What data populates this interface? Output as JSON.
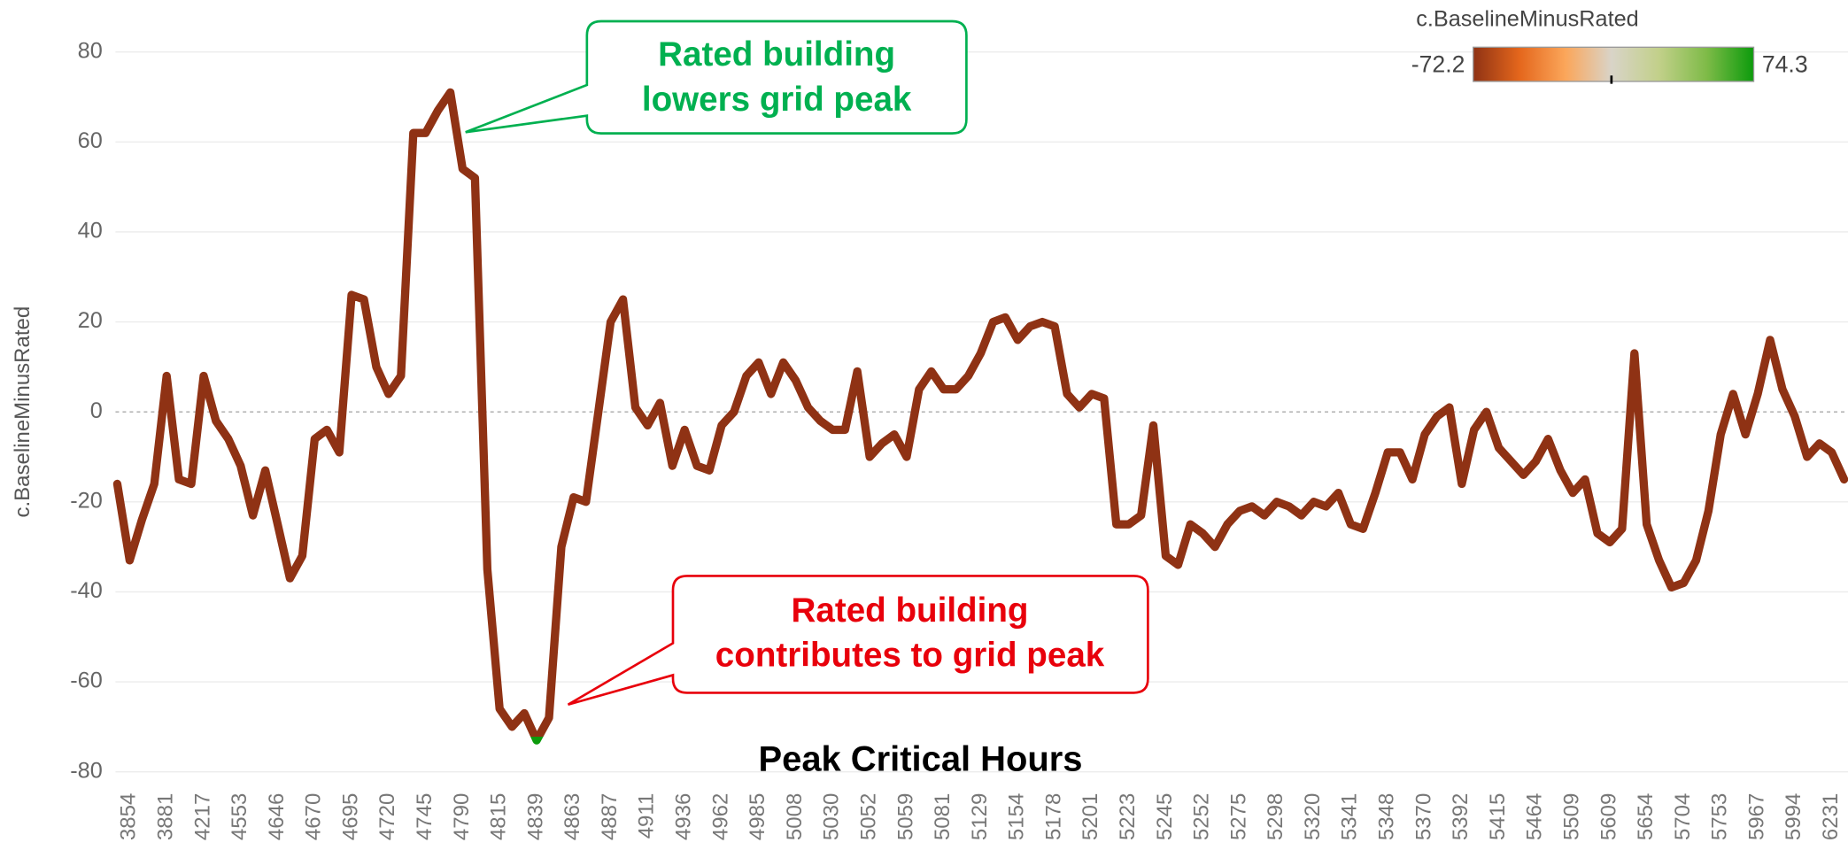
{
  "chart_data": {
    "type": "line",
    "y_label": "c.BaselineMinusRated",
    "x_label": "Peak Critical Hours",
    "categories": [
      null,
      "3854",
      null,
      null,
      "3881",
      null,
      null,
      "4217",
      null,
      null,
      "4553",
      null,
      null,
      "4646",
      null,
      null,
      "4670",
      null,
      null,
      "4695",
      null,
      null,
      "4720",
      null,
      null,
      "4745",
      null,
      null,
      "4790",
      null,
      null,
      "4815",
      null,
      null,
      "4839",
      null,
      null,
      "4863",
      null,
      null,
      "4887",
      null,
      null,
      "4911",
      null,
      null,
      "4936",
      null,
      null,
      "4962",
      null,
      null,
      "4985",
      null,
      null,
      "5008",
      null,
      null,
      "5030",
      null,
      null,
      "5052",
      null,
      null,
      "5059",
      null,
      null,
      "5081",
      null,
      null,
      "5129",
      null,
      null,
      "5154",
      null,
      null,
      "5178",
      null,
      null,
      "5201",
      null,
      null,
      "5223",
      null,
      null,
      "5245",
      null,
      null,
      "5252",
      null,
      null,
      "5275",
      null,
      null,
      "5298",
      null,
      null,
      "5320",
      null,
      null,
      "5341",
      null,
      null,
      "5348",
      null,
      null,
      "5370",
      null,
      null,
      "5392",
      null,
      null,
      "5415",
      null,
      null,
      "5464",
      null,
      null,
      "5509",
      null,
      null,
      "5609",
      null,
      null,
      "5654",
      null,
      null,
      "5704",
      null,
      null,
      "5753",
      null,
      null,
      "5967",
      null,
      null,
      "5994",
      null,
      null,
      "6231",
      null
    ],
    "values": [
      -16,
      -33,
      -24,
      -16,
      8,
      -15,
      -16,
      8,
      -2,
      -6,
      -12,
      -23,
      -13,
      -25,
      -37,
      -32,
      -6,
      -4,
      -9,
      26,
      25,
      10,
      4,
      8,
      62,
      62,
      67,
      71,
      54,
      52,
      -35,
      -66,
      -70,
      -67,
      -73,
      -68,
      -30,
      -19,
      -20,
      0,
      20,
      25,
      1,
      -3,
      2,
      -12,
      -4,
      -12,
      -13,
      -3,
      0,
      8,
      11,
      4,
      11,
      7,
      1,
      -2,
      -4,
      -4,
      9,
      -10,
      -7,
      -5,
      -10,
      5,
      9,
      5,
      5,
      8,
      13,
      20,
      21,
      16,
      19,
      20,
      19,
      4,
      1,
      4,
      3,
      -25,
      -25,
      -23,
      -3,
      -32,
      -34,
      -25,
      -27,
      -30,
      -25,
      -22,
      -21,
      -23,
      -20,
      -21,
      -23,
      -20,
      -21,
      -18,
      -25,
      -26,
      -18,
      -9,
      -9,
      -15,
      -5,
      -1,
      1,
      -16,
      -4,
      0,
      -8,
      -11,
      -14,
      -11,
      -6,
      -13,
      -18,
      -15,
      -27,
      -29,
      -26,
      13,
      -25,
      -33,
      -39,
      -38,
      -33,
      -22,
      -5,
      4,
      -5,
      4,
      16,
      5,
      -1,
      -10,
      -7,
      -9,
      -15
    ],
    "ylim": [
      -83,
      83
    ],
    "yticks": [
      -80,
      -60,
      -40,
      -20,
      0,
      20,
      40,
      60,
      80
    ],
    "grid": true,
    "zero_line": true,
    "color_scale": {
      "title": "c.BaselineMinusRated",
      "min": -72.2,
      "max": 74.3,
      "center": 0,
      "colors": [
        "#8f3214",
        "#e4661c",
        "#fba65a",
        "#d9d4c8",
        "#c2d08a",
        "#7fbb48",
        "#0c9b0c"
      ]
    },
    "annotations": [
      {
        "text": [
          "Rated building",
          "lowers grid peak"
        ],
        "color": "#00b050"
      },
      {
        "text": [
          "Rated building",
          "contributes to grid peak"
        ],
        "color": "#e8000b"
      }
    ]
  }
}
